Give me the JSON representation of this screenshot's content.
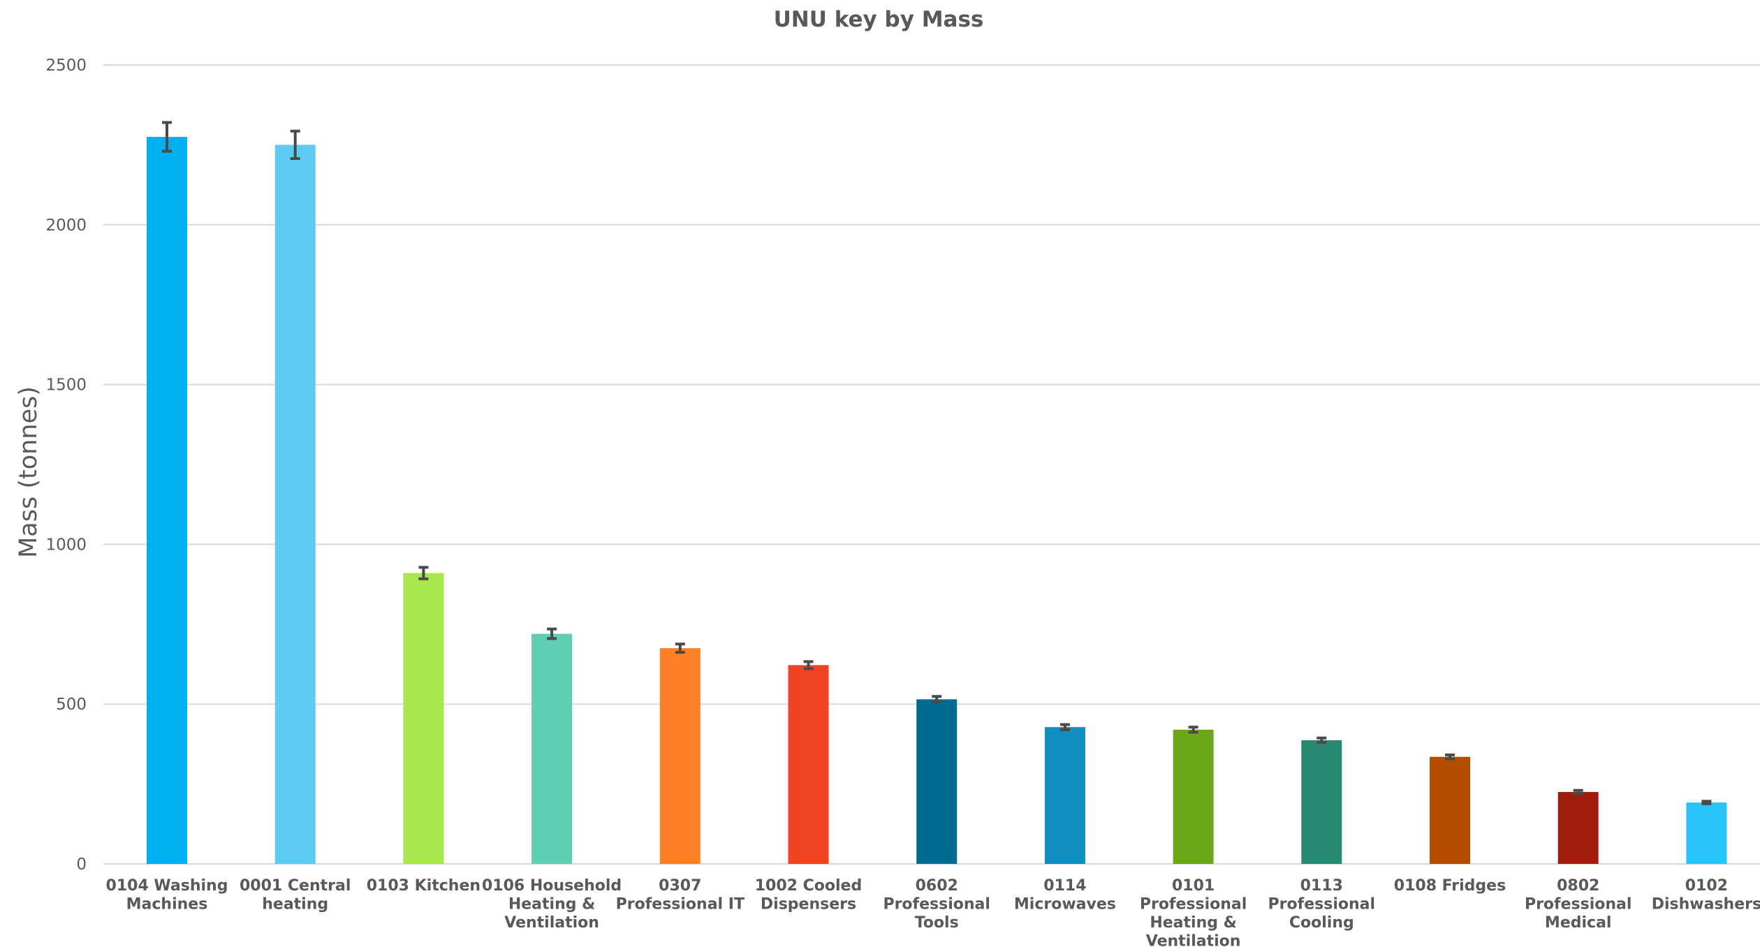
{
  "chart_data": {
    "type": "bar",
    "title": "UNU key by Mass",
    "xlabel": "",
    "ylabel": "Mass (tonnes)",
    "ylim": [
      0,
      2500
    ],
    "yticks": [
      0,
      500,
      1000,
      1500,
      2000,
      2500
    ],
    "grid": true,
    "legend": "none",
    "categories": [
      [
        "0104 Washing",
        "Machines"
      ],
      [
        "0001 Central",
        "heating"
      ],
      [
        "0103 Kitchen"
      ],
      [
        "0106 Household",
        "Heating &",
        "Ventilation"
      ],
      [
        "0307",
        "Professional IT"
      ],
      [
        "1002 Cooled",
        "Dispensers"
      ],
      [
        "0602",
        "Professional",
        "Tools"
      ],
      [
        "0114",
        "Microwaves"
      ],
      [
        "0101",
        "Professional",
        "Heating &",
        "Ventilation"
      ],
      [
        "0113",
        "Professional",
        "Cooling"
      ],
      [
        "0108 Fridges"
      ],
      [
        "0802",
        "Professional",
        "Medical"
      ],
      [
        "0102",
        "Dishwashers"
      ]
    ],
    "values": [
      2275,
      2250,
      910,
      720,
      675,
      622,
      515,
      428,
      420,
      387,
      335,
      225,
      192
    ],
    "error": [
      45,
      43,
      18,
      15,
      13,
      11,
      9,
      8,
      8,
      7,
      6,
      5,
      4
    ],
    "colors": [
      "#00b0f0",
      "#5ecbf3",
      "#a6e84d",
      "#5ecfb0",
      "#ff7f27",
      "#f04323",
      "#006a8f",
      "#0e8fbf",
      "#6aa81a",
      "#288a6f",
      "#b34d00",
      "#9e1e0b",
      "#26c4f8"
    ]
  }
}
